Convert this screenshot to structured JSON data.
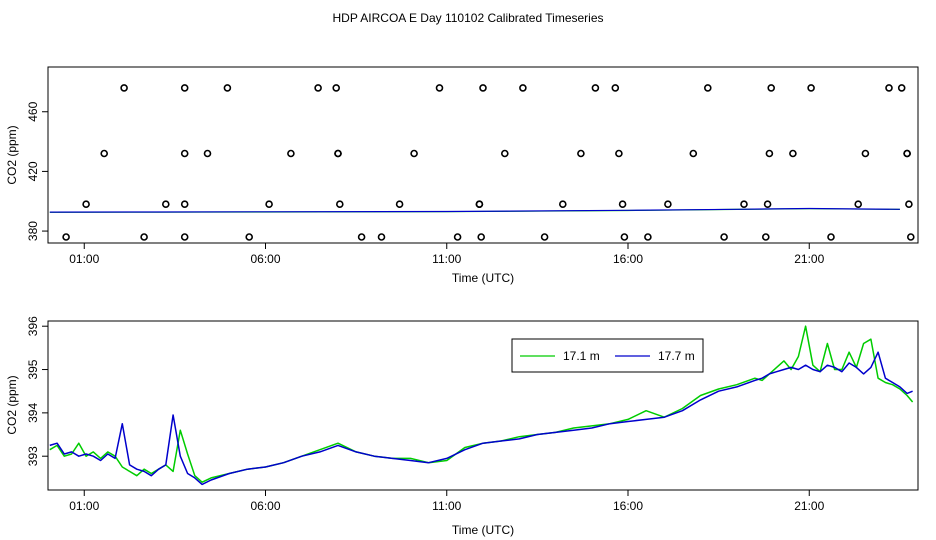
{
  "title": "HDP AIRCOA E  Day 110102  Calibrated Timeseries",
  "chart_data": [
    {
      "type": "line",
      "xlabel": "Time (UTC)",
      "ylabel": "CO2 (ppm)",
      "xlim": [
        0,
        24
      ],
      "ylim": [
        372,
        490
      ],
      "xticks": [
        1,
        6,
        11,
        16,
        21
      ],
      "xtick_labels": [
        "01:00",
        "06:00",
        "11:00",
        "16:00",
        "21:00"
      ],
      "yticks": [
        380,
        420,
        460
      ],
      "ytick_labels": [
        "380",
        "420",
        "460"
      ],
      "series": [
        {
          "color": "#00cc00",
          "values": [
            [
              0.05,
              392.6
            ],
            [
              3.0,
              392.7
            ],
            [
              6.0,
              392.8
            ],
            [
              11.0,
              393.0
            ],
            [
              16.0,
              393.8
            ],
            [
              19.0,
              394.5
            ],
            [
              21.0,
              395.0
            ],
            [
              23.5,
              394.5
            ]
          ]
        },
        {
          "color": "#0000cc",
          "values": [
            [
              0.05,
              392.7
            ],
            [
              3.0,
              392.8
            ],
            [
              6.0,
              392.9
            ],
            [
              11.0,
              393.1
            ],
            [
              16.0,
              393.9
            ],
            [
              19.0,
              394.6
            ],
            [
              21.0,
              395.1
            ],
            [
              23.5,
              394.6
            ]
          ]
        }
      ],
      "markers": {
        "x": [
          0.5,
          1.05,
          1.55,
          2.1,
          2.65,
          3.25,
          3.77,
          3.77,
          3.77,
          3.77,
          4.4,
          4.95,
          5.55,
          6.1,
          6.7,
          7.45,
          7.95,
          8.0,
          8.0,
          8.05,
          8.65,
          9.2,
          9.7,
          10.1,
          10.8,
          11.3,
          11.9,
          11.9,
          11.95,
          12.0,
          12.6,
          13.1,
          13.7,
          14.2,
          14.7,
          15.1,
          15.65,
          15.75,
          15.85,
          15.9,
          16.55,
          17.1,
          17.8,
          18.2,
          18.65,
          19.2,
          19.8,
          19.85,
          19.9,
          19.95,
          20.55,
          21.05,
          21.6,
          22.35,
          22.55,
          23.2,
          23.55,
          23.7,
          23.7,
          23.75,
          23.8
        ],
        "y": [
          376,
          398,
          432,
          476,
          376,
          398,
          376,
          398,
          432,
          476,
          432,
          476,
          376,
          398,
          432,
          476,
          476,
          432,
          432,
          398,
          376,
          376,
          398,
          432,
          476,
          376,
          398,
          398,
          376,
          476,
          432,
          476,
          376,
          398,
          432,
          476,
          476,
          432,
          398,
          376,
          376,
          398,
          432,
          476,
          376,
          398,
          376,
          398,
          432,
          476,
          432,
          476,
          376,
          398,
          432,
          476,
          476,
          432,
          432,
          398,
          376
        ]
      }
    },
    {
      "type": "line",
      "xlabel": "Time (UTC)",
      "ylabel": "CO2 (ppm)",
      "xlim": [
        0,
        24
      ],
      "ylim": [
        392.22,
        396.12
      ],
      "xticks": [
        1,
        6,
        11,
        16,
        21
      ],
      "xtick_labels": [
        "01:00",
        "06:00",
        "11:00",
        "16:00",
        "21:00"
      ],
      "yticks": [
        393,
        394,
        395,
        396
      ],
      "ytick_labels": [
        "393",
        "394",
        "395",
        "396"
      ],
      "legend": {
        "position": "top-right",
        "entries": [
          "17.1 m",
          "17.7 m"
        ]
      },
      "series": [
        {
          "name": "17.1 m",
          "color": "#00cc00",
          "x": [
            0.05,
            0.25,
            0.45,
            0.65,
            0.85,
            1.05,
            1.25,
            1.45,
            1.65,
            1.85,
            2.05,
            2.25,
            2.45,
            2.65,
            2.85,
            3.05,
            3.25,
            3.45,
            3.65,
            3.85,
            4.05,
            4.25,
            4.5,
            5.0,
            5.5,
            6.0,
            6.5,
            7.0,
            7.5,
            8.0,
            8.5,
            9.0,
            9.5,
            10.0,
            10.5,
            11.0,
            11.5,
            12.0,
            12.5,
            13.0,
            13.5,
            14.0,
            14.5,
            15.0,
            15.5,
            16.0,
            16.5,
            17.0,
            17.5,
            18.0,
            18.5,
            19.0,
            19.5,
            19.7,
            19.9,
            20.1,
            20.3,
            20.5,
            20.7,
            20.9,
            21.1,
            21.3,
            21.5,
            21.7,
            21.9,
            22.1,
            22.3,
            22.5,
            22.7,
            22.9,
            23.1,
            23.3,
            23.5,
            23.7,
            23.85
          ],
          "y": [
            393.15,
            393.25,
            393.0,
            393.05,
            393.3,
            393.0,
            393.1,
            392.95,
            393.1,
            393.0,
            392.75,
            392.65,
            392.55,
            392.7,
            392.6,
            392.7,
            392.8,
            392.65,
            393.6,
            393.05,
            392.55,
            392.4,
            392.5,
            392.6,
            392.7,
            392.75,
            392.85,
            393.0,
            393.15,
            393.3,
            393.1,
            393.0,
            392.95,
            392.95,
            392.85,
            392.9,
            393.2,
            393.3,
            393.35,
            393.45,
            393.5,
            393.55,
            393.65,
            393.7,
            393.75,
            393.85,
            394.05,
            393.9,
            394.1,
            394.4,
            394.55,
            394.65,
            394.8,
            394.75,
            394.9,
            395.05,
            395.2,
            395.0,
            395.3,
            396.0,
            395.1,
            394.95,
            395.6,
            395.0,
            395.0,
            395.4,
            395.05,
            395.6,
            395.7,
            394.8,
            394.7,
            394.65,
            394.55,
            394.4,
            394.25
          ]
        },
        {
          "name": "17.7 m",
          "color": "#0000cc",
          "x": [
            0.05,
            0.25,
            0.45,
            0.65,
            0.85,
            1.05,
            1.25,
            1.45,
            1.65,
            1.85,
            2.05,
            2.25,
            2.45,
            2.65,
            2.85,
            3.05,
            3.25,
            3.45,
            3.65,
            3.85,
            4.05,
            4.25,
            4.5,
            5.0,
            5.5,
            6.0,
            6.5,
            7.0,
            7.5,
            8.0,
            8.5,
            9.0,
            9.5,
            10.0,
            10.5,
            11.0,
            11.5,
            12.0,
            12.5,
            13.0,
            13.5,
            14.0,
            14.5,
            15.0,
            15.5,
            16.0,
            16.5,
            17.0,
            17.5,
            18.0,
            18.5,
            19.0,
            19.5,
            19.7,
            19.9,
            20.1,
            20.3,
            20.5,
            20.7,
            20.9,
            21.1,
            21.3,
            21.5,
            21.7,
            21.9,
            22.1,
            22.3,
            22.5,
            22.7,
            22.9,
            23.1,
            23.3,
            23.5,
            23.7,
            23.85
          ],
          "y": [
            393.25,
            393.3,
            393.05,
            393.1,
            393.0,
            393.05,
            393.0,
            392.9,
            393.05,
            392.95,
            393.75,
            392.8,
            392.7,
            392.65,
            392.55,
            392.7,
            392.8,
            393.95,
            393.0,
            392.6,
            392.5,
            392.35,
            392.45,
            392.6,
            392.7,
            392.75,
            392.85,
            393.0,
            393.1,
            393.25,
            393.1,
            393.0,
            392.95,
            392.9,
            392.85,
            392.95,
            393.15,
            393.3,
            393.35,
            393.4,
            393.5,
            393.55,
            393.6,
            393.65,
            393.75,
            393.8,
            393.85,
            393.9,
            394.05,
            394.3,
            394.5,
            394.6,
            394.75,
            394.8,
            394.9,
            394.95,
            395.0,
            395.05,
            395.0,
            395.1,
            395.0,
            394.95,
            395.1,
            395.05,
            394.95,
            395.15,
            395.05,
            394.9,
            395.05,
            395.4,
            394.8,
            394.7,
            394.6,
            394.45,
            394.5
          ]
        }
      ]
    }
  ]
}
